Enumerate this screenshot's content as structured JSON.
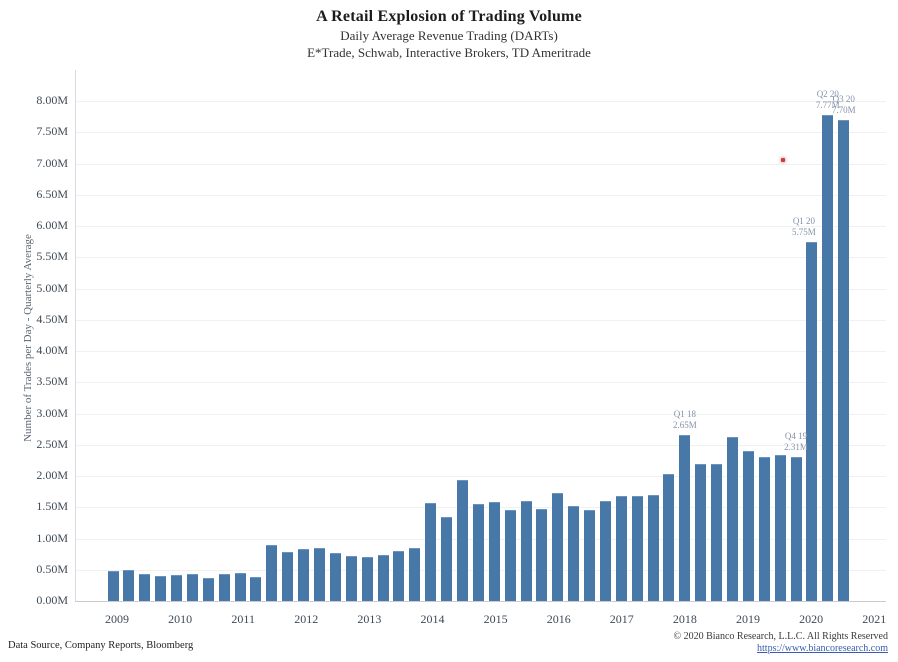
{
  "header": {
    "title": "A Retail Explosion of Trading Volume",
    "subtitle1": "Daily Average Revenue Trading (DARTs)",
    "subtitle2": "E*Trade, Schwab, Interactive Brokers, TD Ameritrade"
  },
  "chart_data": {
    "type": "bar",
    "title": "A Retail Explosion of Trading Volume",
    "xlabel": "",
    "ylabel": "Number of Trades per Day - Quarterly Average",
    "ylim": [
      0,
      8
    ],
    "ytick_step": 0.5,
    "ytick_labels": [
      "0.00M",
      "0.50M",
      "1.00M",
      "1.50M",
      "2.00M",
      "2.50M",
      "3.00M",
      "3.50M",
      "4.00M",
      "4.50M",
      "5.00M",
      "5.50M",
      "6.00M",
      "6.50M",
      "7.00M",
      "7.50M",
      "8.00M"
    ],
    "x_year_labels": [
      "2009",
      "2010",
      "2011",
      "2012",
      "2013",
      "2014",
      "2015",
      "2016",
      "2017",
      "2018",
      "2019",
      "2020",
      "2021"
    ],
    "bar_color": "#4878a8",
    "grid": "horizontal-faint",
    "legend": "none",
    "categories": [
      "2009 Q1",
      "2009 Q2",
      "2009 Q3",
      "2009 Q4",
      "2010 Q1",
      "2010 Q2",
      "2010 Q3",
      "2010 Q4",
      "2011 Q1",
      "2011 Q2",
      "2011 Q3",
      "2011 Q4",
      "2012 Q1",
      "2012 Q2",
      "2012 Q3",
      "2012 Q4",
      "2013 Q1",
      "2013 Q2",
      "2013 Q3",
      "2013 Q4",
      "2014 Q1",
      "2014 Q2",
      "2014 Q3",
      "2014 Q4",
      "2015 Q1",
      "2015 Q2",
      "2015 Q3",
      "2015 Q4",
      "2016 Q1",
      "2016 Q2",
      "2016 Q3",
      "2016 Q4",
      "2017 Q1",
      "2017 Q2",
      "2017 Q3",
      "2017 Q4",
      "2018 Q1",
      "2018 Q2",
      "2018 Q3",
      "2018 Q4",
      "2019 Q1",
      "2019 Q2",
      "2019 Q3",
      "2019 Q4",
      "2020 Q1",
      "2020 Q2",
      "2020 Q3"
    ],
    "values": [
      0.48,
      0.49,
      0.43,
      0.4,
      0.42,
      0.43,
      0.37,
      0.43,
      0.45,
      0.38,
      0.9,
      0.78,
      0.83,
      0.85,
      0.77,
      0.72,
      0.7,
      0.73,
      0.8,
      0.85,
      1.57,
      1.35,
      1.93,
      1.55,
      1.58,
      1.45,
      1.6,
      1.47,
      1.73,
      1.52,
      1.45,
      1.6,
      1.68,
      1.68,
      1.7,
      2.03,
      2.65,
      2.2,
      2.2,
      2.62,
      2.4,
      2.3,
      2.33,
      2.31,
      5.75,
      7.77,
      7.7
    ],
    "annotations": [
      {
        "label": "Q1 18",
        "value_label": "2.65M",
        "value": 2.65,
        "bar_index": 36,
        "placement": "above"
      },
      {
        "label": "Q4 19",
        "value_label": "2.31M",
        "value": 2.31,
        "bar_index": 43,
        "placement": "above"
      },
      {
        "label": "Q1 20",
        "value_label": "5.75M",
        "value": 5.75,
        "bar_index": 44,
        "placement": "above-left"
      },
      {
        "label": "Q2 20",
        "value_label": "7.77M",
        "value": 7.77,
        "bar_index": 45,
        "placement": "above"
      },
      {
        "label": "Q3 20",
        "value_label": "7.70M",
        "value": 7.7,
        "bar_index": 46,
        "placement": "above"
      }
    ],
    "marker": {
      "shape": "red-dot",
      "color": "#d03c3c",
      "x_year": 2019.55,
      "y_value": 7.05
    }
  },
  "footer": {
    "left": "Data Source, Company Reports, Bloomberg",
    "copyright": "© 2020 Bianco Research, L.L.C. All Rights Reserved",
    "link": "https://www.biancoresearch.com"
  }
}
